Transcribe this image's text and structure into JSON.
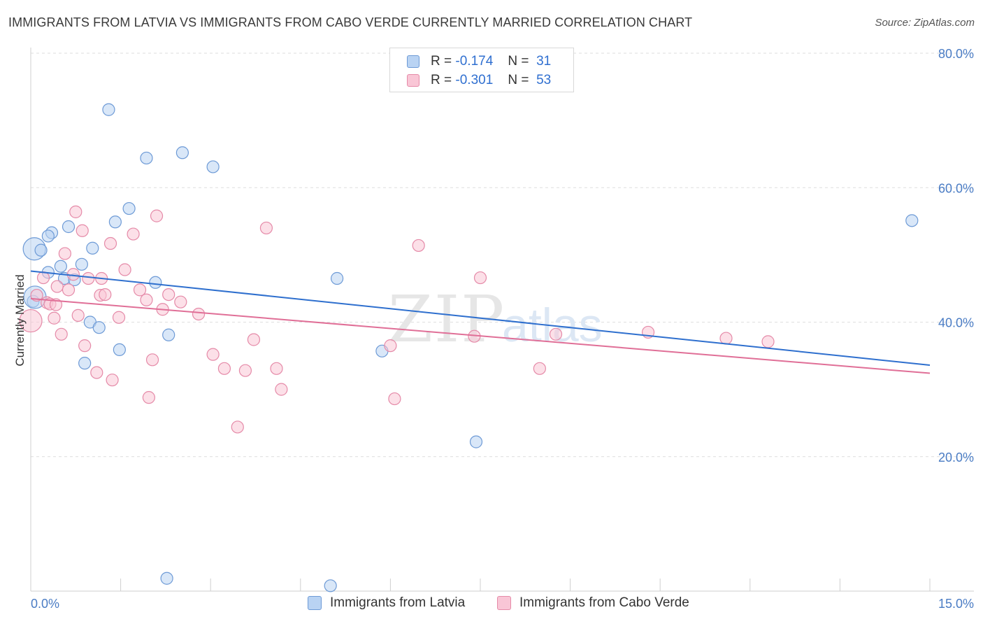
{
  "header": {
    "title": "IMMIGRANTS FROM LATVIA VS IMMIGRANTS FROM CABO VERDE CURRENTLY MARRIED CORRELATION CHART",
    "source": "Source: ZipAtlas.com"
  },
  "legend_top": {
    "rows": [
      {
        "r_label": "R =",
        "r_value": "-0.174",
        "n_label": "N =",
        "n_value": "31",
        "color": "#b9d3f3",
        "stroke": "#6d9ad6"
      },
      {
        "r_label": "R =",
        "r_value": "-0.301",
        "n_label": "N =",
        "n_value": "53",
        "color": "#f9c6d6",
        "stroke": "#e58aa8"
      }
    ]
  },
  "watermark": {
    "zip": "ZIP",
    "atlas": "atlas"
  },
  "chart_data": {
    "type": "scatter",
    "title": "IMMIGRANTS FROM LATVIA VS IMMIGRANTS FROM CABO VERDE CURRENTLY MARRIED CORRELATION CHART",
    "xlabel": "",
    "ylabel": "Currently Married",
    "xlim": [
      0,
      15
    ],
    "ylim": [
      0,
      80
    ],
    "x_tick_labels": [
      "0.0%",
      "15.0%"
    ],
    "y_ticks": [
      20,
      40,
      60,
      80
    ],
    "y_tick_labels": [
      "20.0%",
      "40.0%",
      "60.0%",
      "80.0%"
    ],
    "grid": true,
    "legend": "bottom-center",
    "series": [
      {
        "name": "Immigrants from Latvia",
        "color": "#6d9ad6",
        "fill": "#b9d3f3",
        "line_color": "#2e6fce",
        "trend": [
          [
            0,
            47.6
          ],
          [
            15,
            33.6
          ]
        ],
        "points": [
          [
            1.3,
            71.6
          ],
          [
            1.93,
            64.4
          ],
          [
            2.53,
            65.2
          ],
          [
            3.04,
            63.1
          ],
          [
            1.64,
            56.9
          ],
          [
            1.41,
            54.9
          ],
          [
            0.63,
            54.2
          ],
          [
            0.35,
            53.3
          ],
          [
            0.29,
            52.8
          ],
          [
            0.06,
            50.9
          ],
          [
            0.17,
            50.7
          ],
          [
            1.03,
            51.0
          ],
          [
            0.85,
            48.6
          ],
          [
            0.5,
            48.3
          ],
          [
            0.29,
            47.4
          ],
          [
            0.56,
            46.5
          ],
          [
            0.73,
            46.3
          ],
          [
            2.08,
            45.9
          ],
          [
            5.11,
            46.5
          ],
          [
            0.04,
            43.1
          ],
          [
            0.99,
            40.0
          ],
          [
            1.14,
            39.2
          ],
          [
            2.3,
            38.1
          ],
          [
            1.48,
            35.9
          ],
          [
            5.86,
            35.7
          ],
          [
            0.9,
            33.9
          ],
          [
            7.43,
            22.2
          ],
          [
            14.7,
            55.1
          ],
          [
            2.27,
            1.9
          ],
          [
            5.0,
            0.8
          ],
          [
            0.07,
            43.7
          ]
        ]
      },
      {
        "name": "Immigrants from Cabo Verde",
        "color": "#e58aa8",
        "fill": "#f9c6d6",
        "line_color": "#e06f97",
        "trend": [
          [
            0,
            43.5
          ],
          [
            15,
            32.4
          ]
        ],
        "points": [
          [
            0.75,
            56.4
          ],
          [
            2.1,
            55.8
          ],
          [
            3.93,
            54.0
          ],
          [
            0.86,
            53.6
          ],
          [
            1.71,
            53.1
          ],
          [
            1.33,
            51.7
          ],
          [
            6.47,
            51.4
          ],
          [
            0.57,
            50.2
          ],
          [
            1.57,
            47.8
          ],
          [
            0.71,
            47.1
          ],
          [
            0.21,
            46.6
          ],
          [
            0.96,
            46.5
          ],
          [
            1.18,
            46.5
          ],
          [
            7.5,
            46.6
          ],
          [
            0.44,
            45.3
          ],
          [
            0.63,
            44.8
          ],
          [
            1.82,
            44.8
          ],
          [
            1.16,
            44.0
          ],
          [
            1.24,
            44.1
          ],
          [
            2.3,
            44.1
          ],
          [
            0.1,
            44.0
          ],
          [
            0.27,
            42.9
          ],
          [
            0.32,
            42.7
          ],
          [
            0.42,
            42.6
          ],
          [
            1.93,
            43.3
          ],
          [
            2.5,
            43.0
          ],
          [
            2.2,
            41.9
          ],
          [
            2.8,
            41.2
          ],
          [
            0.79,
            41.0
          ],
          [
            0.39,
            40.6
          ],
          [
            1.47,
            40.7
          ],
          [
            0.0,
            40.2
          ],
          [
            0.51,
            38.2
          ],
          [
            3.72,
            37.4
          ],
          [
            7.4,
            37.9
          ],
          [
            8.76,
            38.2
          ],
          [
            10.3,
            38.5
          ],
          [
            11.6,
            37.6
          ],
          [
            12.3,
            37.1
          ],
          [
            0.9,
            36.5
          ],
          [
            6.0,
            36.5
          ],
          [
            3.04,
            35.2
          ],
          [
            2.03,
            34.4
          ],
          [
            3.23,
            33.1
          ],
          [
            3.58,
            32.8
          ],
          [
            4.1,
            33.1
          ],
          [
            8.49,
            33.1
          ],
          [
            1.1,
            32.5
          ],
          [
            1.36,
            31.4
          ],
          [
            4.18,
            30.0
          ],
          [
            1.97,
            28.8
          ],
          [
            6.07,
            28.6
          ],
          [
            3.45,
            24.4
          ]
        ]
      }
    ]
  },
  "legend_bottom": {
    "items": [
      {
        "label": "Immigrants from Latvia",
        "color": "#b9d3f3",
        "stroke": "#6d9ad6"
      },
      {
        "label": "Immigrants from Cabo Verde",
        "color": "#f9c6d6",
        "stroke": "#e58aa8"
      }
    ]
  }
}
